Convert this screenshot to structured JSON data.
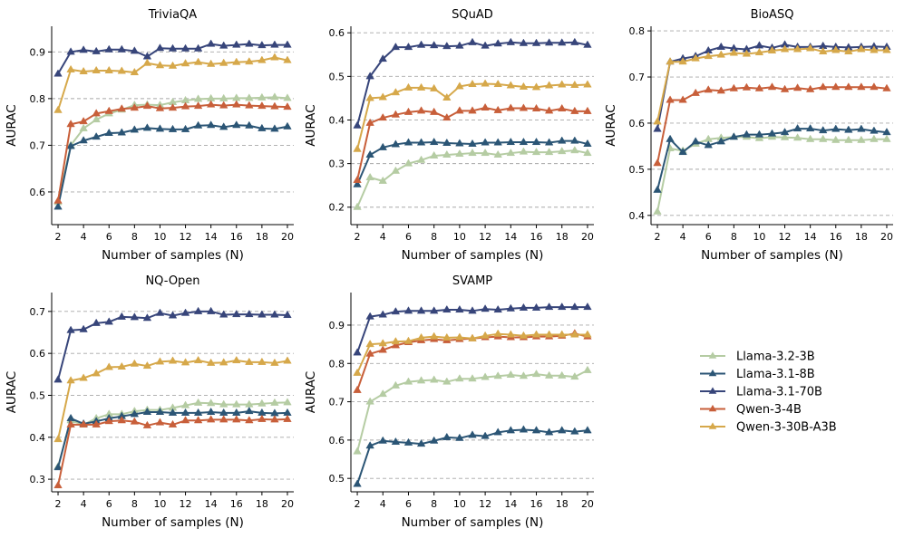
{
  "figure": {
    "legend": [
      {
        "name": "Llama-3.2-3B",
        "color": "#b5cca3"
      },
      {
        "name": "Llama-3.1-8B",
        "color": "#2b5575"
      },
      {
        "name": "Llama-3.1-70B",
        "color": "#37457a"
      },
      {
        "name": "Qwen-3-4B",
        "color": "#c85f3a"
      },
      {
        "name": "Qwen-3-30B-A3B",
        "color": "#d6a84a"
      }
    ]
  },
  "chart_data": [
    {
      "type": "line",
      "title": "TriviaQA",
      "xlabel": "Number of samples (N)",
      "ylabel": "AURAC",
      "x": [
        2,
        3,
        4,
        5,
        6,
        7,
        8,
        9,
        10,
        11,
        12,
        13,
        14,
        15,
        16,
        17,
        18,
        19,
        20
      ],
      "xticks": [
        "2",
        "4",
        "6",
        "8",
        "10",
        "12",
        "14",
        "16",
        "18",
        "20"
      ],
      "ylim": [
        0.53,
        0.955
      ],
      "yticks": [
        "0.6",
        "0.7",
        "0.8",
        "0.9"
      ],
      "ytick_values": [
        0.6,
        0.7,
        0.8,
        0.9
      ],
      "series": [
        {
          "name": "Llama-3.2-3B",
          "values": [
            0.578,
            0.7,
            0.736,
            0.755,
            0.768,
            0.776,
            0.786,
            0.787,
            0.786,
            0.792,
            0.796,
            0.799,
            0.8,
            0.8,
            0.801,
            0.801,
            0.802,
            0.803,
            0.801
          ]
        },
        {
          "name": "Llama-3.1-8B",
          "values": [
            0.568,
            0.698,
            0.71,
            0.718,
            0.726,
            0.727,
            0.733,
            0.737,
            0.735,
            0.734,
            0.734,
            0.742,
            0.743,
            0.739,
            0.743,
            0.742,
            0.736,
            0.735,
            0.74
          ]
        },
        {
          "name": "Llama-3.1-70B",
          "values": [
            0.853,
            0.9,
            0.904,
            0.901,
            0.905,
            0.905,
            0.902,
            0.89,
            0.908,
            0.907,
            0.907,
            0.907,
            0.917,
            0.913,
            0.915,
            0.917,
            0.914,
            0.915,
            0.915
          ]
        },
        {
          "name": "Qwen-3-4B",
          "values": [
            0.581,
            0.745,
            0.751,
            0.768,
            0.773,
            0.778,
            0.78,
            0.784,
            0.779,
            0.78,
            0.783,
            0.784,
            0.787,
            0.785,
            0.787,
            0.785,
            0.784,
            0.783,
            0.782
          ]
        },
        {
          "name": "Qwen-3-30B-A3B",
          "values": [
            0.775,
            0.862,
            0.858,
            0.86,
            0.86,
            0.859,
            0.856,
            0.876,
            0.871,
            0.87,
            0.875,
            0.878,
            0.874,
            0.876,
            0.878,
            0.879,
            0.882,
            0.888,
            0.882
          ]
        }
      ]
    },
    {
      "type": "line",
      "title": "SQuAD",
      "xlabel": "Number of samples (N)",
      "ylabel": "AURAC",
      "x": [
        2,
        3,
        4,
        5,
        6,
        7,
        8,
        9,
        10,
        11,
        12,
        13,
        14,
        15,
        16,
        17,
        18,
        19,
        20
      ],
      "xticks": [
        "2",
        "4",
        "6",
        "8",
        "10",
        "12",
        "14",
        "16",
        "18",
        "20"
      ],
      "ylim": [
        0.16,
        0.615
      ],
      "yticks": [
        "0.2",
        "0.3",
        "0.4",
        "0.5",
        "0.6"
      ],
      "ytick_values": [
        0.2,
        0.3,
        0.4,
        0.5,
        0.6
      ],
      "series": [
        {
          "name": "Llama-3.2-3B",
          "values": [
            0.2,
            0.268,
            0.26,
            0.283,
            0.3,
            0.308,
            0.318,
            0.32,
            0.322,
            0.324,
            0.324,
            0.32,
            0.324,
            0.327,
            0.326,
            0.326,
            0.328,
            0.33,
            0.324
          ]
        },
        {
          "name": "Llama-3.1-8B",
          "values": [
            0.252,
            0.32,
            0.337,
            0.344,
            0.348,
            0.348,
            0.349,
            0.347,
            0.346,
            0.345,
            0.348,
            0.348,
            0.349,
            0.349,
            0.349,
            0.348,
            0.352,
            0.352,
            0.345
          ]
        },
        {
          "name": "Llama-3.1-70B",
          "values": [
            0.387,
            0.5,
            0.54,
            0.567,
            0.567,
            0.572,
            0.571,
            0.569,
            0.57,
            0.578,
            0.57,
            0.575,
            0.578,
            0.576,
            0.576,
            0.577,
            0.577,
            0.578,
            0.572
          ]
        },
        {
          "name": "Qwen-3-4B",
          "values": [
            0.262,
            0.393,
            0.405,
            0.412,
            0.418,
            0.421,
            0.418,
            0.405,
            0.421,
            0.421,
            0.428,
            0.422,
            0.427,
            0.427,
            0.426,
            0.421,
            0.426,
            0.42,
            0.42
          ]
        },
        {
          "name": "Qwen-3-30B-A3B",
          "values": [
            0.333,
            0.45,
            0.452,
            0.463,
            0.474,
            0.474,
            0.472,
            0.451,
            0.477,
            0.482,
            0.483,
            0.482,
            0.479,
            0.476,
            0.475,
            0.479,
            0.481,
            0.48,
            0.481
          ]
        }
      ]
    },
    {
      "type": "line",
      "title": "BioASQ",
      "xlabel": "Number of samples (N)",
      "ylabel": "AURAC",
      "x": [
        2,
        3,
        4,
        5,
        6,
        7,
        8,
        9,
        10,
        11,
        12,
        13,
        14,
        15,
        16,
        17,
        18,
        19,
        20
      ],
      "xticks": [
        "2",
        "4",
        "6",
        "8",
        "10",
        "12",
        "14",
        "16",
        "18",
        "20"
      ],
      "ylim": [
        0.38,
        0.81
      ],
      "yticks": [
        "0.4",
        "0.5",
        "0.6",
        "0.7",
        "0.8"
      ],
      "ytick_values": [
        0.4,
        0.5,
        0.6,
        0.7,
        0.8
      ],
      "series": [
        {
          "name": "Llama-3.2-3B",
          "values": [
            0.408,
            0.545,
            0.54,
            0.555,
            0.565,
            0.568,
            0.57,
            0.57,
            0.567,
            0.57,
            0.569,
            0.568,
            0.565,
            0.565,
            0.563,
            0.563,
            0.563,
            0.565,
            0.565
          ]
        },
        {
          "name": "Llama-3.1-8B",
          "values": [
            0.455,
            0.565,
            0.537,
            0.56,
            0.552,
            0.56,
            0.57,
            0.575,
            0.575,
            0.577,
            0.58,
            0.588,
            0.588,
            0.584,
            0.587,
            0.585,
            0.587,
            0.583,
            0.58
          ]
        },
        {
          "name": "Llama-3.1-70B",
          "values": [
            0.587,
            0.733,
            0.74,
            0.745,
            0.757,
            0.765,
            0.762,
            0.76,
            0.768,
            0.763,
            0.77,
            0.765,
            0.765,
            0.767,
            0.765,
            0.764,
            0.765,
            0.766,
            0.765
          ]
        },
        {
          "name": "Qwen-3-4B",
          "values": [
            0.513,
            0.65,
            0.65,
            0.665,
            0.672,
            0.67,
            0.675,
            0.677,
            0.675,
            0.678,
            0.673,
            0.676,
            0.673,
            0.678,
            0.678,
            0.678,
            0.678,
            0.678,
            0.675
          ]
        },
        {
          "name": "Qwen-3-30B-A3B",
          "values": [
            0.603,
            0.733,
            0.733,
            0.74,
            0.745,
            0.748,
            0.752,
            0.75,
            0.753,
            0.757,
            0.76,
            0.76,
            0.762,
            0.755,
            0.758,
            0.755,
            0.76,
            0.758,
            0.758
          ]
        }
      ]
    },
    {
      "type": "line",
      "title": "NQ-Open",
      "xlabel": "Number of samples (N)",
      "ylabel": "AURAC",
      "x": [
        2,
        3,
        4,
        5,
        6,
        7,
        8,
        9,
        10,
        11,
        12,
        13,
        14,
        15,
        16,
        17,
        18,
        19,
        20
      ],
      "xticks": [
        "2",
        "4",
        "6",
        "8",
        "10",
        "12",
        "14",
        "16",
        "18",
        "20"
      ],
      "ylim": [
        0.27,
        0.745
      ],
      "yticks": [
        "0.3",
        "0.4",
        "0.5",
        "0.6",
        "0.7"
      ],
      "ytick_values": [
        0.3,
        0.4,
        0.5,
        0.6,
        0.7
      ],
      "series": [
        {
          "name": "Llama-3.2-3B",
          "values": [
            0.33,
            0.44,
            0.43,
            0.445,
            0.455,
            0.455,
            0.462,
            0.465,
            0.465,
            0.47,
            0.476,
            0.482,
            0.481,
            0.478,
            0.478,
            0.478,
            0.48,
            0.482,
            0.483
          ]
        },
        {
          "name": "Llama-3.1-8B",
          "values": [
            0.328,
            0.445,
            0.432,
            0.438,
            0.445,
            0.45,
            0.455,
            0.46,
            0.46,
            0.458,
            0.458,
            0.458,
            0.46,
            0.458,
            0.458,
            0.462,
            0.458,
            0.457,
            0.458
          ]
        },
        {
          "name": "Llama-3.1-70B",
          "values": [
            0.537,
            0.655,
            0.657,
            0.672,
            0.675,
            0.687,
            0.686,
            0.684,
            0.696,
            0.69,
            0.696,
            0.7,
            0.7,
            0.692,
            0.693,
            0.693,
            0.692,
            0.692,
            0.691
          ]
        },
        {
          "name": "Qwen-3-4B",
          "values": [
            0.285,
            0.43,
            0.43,
            0.43,
            0.438,
            0.44,
            0.437,
            0.428,
            0.435,
            0.43,
            0.44,
            0.44,
            0.442,
            0.442,
            0.442,
            0.44,
            0.443,
            0.442,
            0.443
          ]
        },
        {
          "name": "Qwen-3-30B-A3B",
          "values": [
            0.395,
            0.535,
            0.541,
            0.552,
            0.567,
            0.568,
            0.575,
            0.57,
            0.58,
            0.582,
            0.578,
            0.583,
            0.577,
            0.578,
            0.583,
            0.579,
            0.579,
            0.577,
            0.582
          ]
        }
      ]
    },
    {
      "type": "line",
      "title": "SVAMP",
      "xlabel": "Number of samples (N)",
      "ylabel": "AURAC",
      "x": [
        2,
        3,
        4,
        5,
        6,
        7,
        8,
        9,
        10,
        11,
        12,
        13,
        14,
        15,
        16,
        17,
        18,
        19,
        20
      ],
      "xticks": [
        "2",
        "4",
        "6",
        "8",
        "10",
        "12",
        "14",
        "16",
        "18",
        "20"
      ],
      "ylim": [
        0.465,
        0.985
      ],
      "yticks": [
        "0.5",
        "0.6",
        "0.7",
        "0.8",
        "0.9"
      ],
      "ytick_values": [
        0.5,
        0.6,
        0.7,
        0.8,
        0.9
      ],
      "series": [
        {
          "name": "Llama-3.2-3B",
          "values": [
            0.57,
            0.7,
            0.72,
            0.742,
            0.752,
            0.755,
            0.757,
            0.752,
            0.76,
            0.76,
            0.764,
            0.767,
            0.77,
            0.767,
            0.772,
            0.768,
            0.768,
            0.765,
            0.782
          ]
        },
        {
          "name": "Llama-3.1-8B",
          "values": [
            0.485,
            0.585,
            0.598,
            0.595,
            0.593,
            0.59,
            0.598,
            0.607,
            0.605,
            0.613,
            0.61,
            0.62,
            0.625,
            0.627,
            0.625,
            0.62,
            0.625,
            0.622,
            0.625
          ]
        },
        {
          "name": "Llama-3.1-70B",
          "values": [
            0.828,
            0.922,
            0.927,
            0.935,
            0.937,
            0.937,
            0.937,
            0.94,
            0.94,
            0.937,
            0.942,
            0.94,
            0.943,
            0.945,
            0.945,
            0.947,
            0.947,
            0.947,
            0.947
          ]
        },
        {
          "name": "Qwen-3-4B",
          "values": [
            0.73,
            0.825,
            0.835,
            0.847,
            0.855,
            0.86,
            0.863,
            0.86,
            0.863,
            0.865,
            0.868,
            0.87,
            0.868,
            0.868,
            0.87,
            0.87,
            0.872,
            0.878,
            0.87
          ]
        },
        {
          "name": "Qwen-3-30B-A3B",
          "values": [
            0.775,
            0.85,
            0.852,
            0.857,
            0.858,
            0.867,
            0.87,
            0.867,
            0.868,
            0.865,
            0.872,
            0.877,
            0.875,
            0.872,
            0.875,
            0.875,
            0.875,
            0.875,
            0.875
          ]
        }
      ]
    }
  ]
}
